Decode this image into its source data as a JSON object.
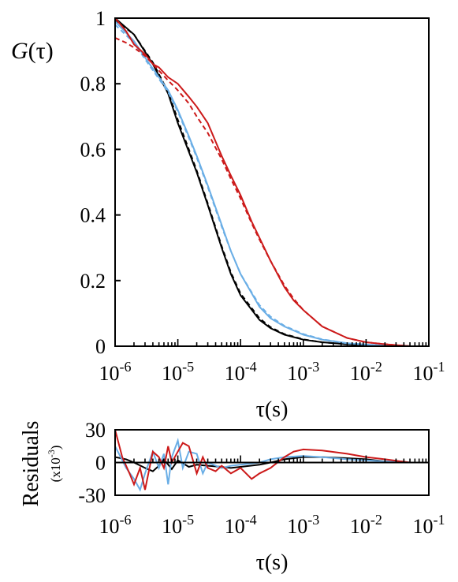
{
  "chart_data": [
    {
      "type": "line",
      "ylabel": "G(τ)",
      "ylabel_italic": "G",
      "ylabel_rest": "(τ)",
      "xlabel": "τ(s)",
      "xscale": "log",
      "xlim": [
        1e-06,
        0.1
      ],
      "ylim": [
        0,
        1
      ],
      "x_tick_labels": [
        {
          "base": "10",
          "exp": "-6"
        },
        {
          "base": "10",
          "exp": "-5"
        },
        {
          "base": "10",
          "exp": "-4"
        },
        {
          "base": "10",
          "exp": "-3"
        },
        {
          "base": "10",
          "exp": "-2"
        },
        {
          "base": "10",
          "exp": "-1"
        }
      ],
      "x_ticks": [
        1e-06,
        1e-05,
        0.0001,
        0.001,
        0.01,
        0.1
      ],
      "y_ticks": [
        0,
        0.2,
        0.4,
        0.6,
        0.8,
        1
      ],
      "y_tick_labels": [
        "0",
        "0.2",
        "0.4",
        "0.6",
        "0.8",
        "1"
      ],
      "grid": false,
      "series": [
        {
          "color": "#000000",
          "style": "solid",
          "x": [
            1e-06,
            2e-06,
            4e-06,
            7e-06,
            1e-05,
            2e-05,
            3e-05,
            5e-05,
            7e-05,
            0.0001,
            0.0002,
            0.0003,
            0.0005,
            0.001,
            0.002,
            0.005,
            0.01,
            0.02,
            0.05
          ],
          "y": [
            1.0,
            0.95,
            0.86,
            0.77,
            0.68,
            0.53,
            0.43,
            0.3,
            0.22,
            0.155,
            0.08,
            0.055,
            0.035,
            0.02,
            0.012,
            0.006,
            0.003,
            0.001,
            0.0
          ]
        },
        {
          "color": "#000000",
          "style": "dashed",
          "x": [
            1e-06,
            2e-06,
            4e-06,
            7e-06,
            1e-05,
            2e-05,
            3e-05,
            5e-05,
            7e-05,
            0.0001,
            0.0002,
            0.0003,
            0.0005,
            0.001,
            0.002,
            0.005,
            0.01,
            0.02,
            0.05
          ],
          "y": [
            0.995,
            0.95,
            0.865,
            0.775,
            0.69,
            0.535,
            0.435,
            0.305,
            0.225,
            0.16,
            0.085,
            0.058,
            0.037,
            0.021,
            0.012,
            0.006,
            0.003,
            0.001,
            0.0
          ]
        },
        {
          "color": "#6aaee6",
          "style": "solid",
          "x": [
            1e-06,
            2e-06,
            3e-06,
            5e-06,
            7e-06,
            1e-05,
            1.5e-05,
            2e-05,
            3e-05,
            5e-05,
            7e-05,
            0.0001,
            0.0002,
            0.0003,
            0.0005,
            0.001,
            0.002,
            0.005,
            0.01,
            0.02,
            0.05
          ],
          "y": [
            0.99,
            0.93,
            0.88,
            0.82,
            0.78,
            0.72,
            0.64,
            0.58,
            0.49,
            0.37,
            0.29,
            0.22,
            0.12,
            0.085,
            0.06,
            0.035,
            0.02,
            0.009,
            0.005,
            0.002,
            0.0
          ]
        },
        {
          "color": "#6aaee6",
          "style": "dashed",
          "x": [
            1e-06,
            2e-06,
            3e-06,
            5e-06,
            7e-06,
            1e-05,
            1.5e-05,
            2e-05,
            3e-05,
            5e-05,
            7e-05,
            0.0001,
            0.0002,
            0.0003,
            0.0005,
            0.001,
            0.002,
            0.005,
            0.01,
            0.02,
            0.05
          ],
          "y": [
            0.98,
            0.925,
            0.875,
            0.815,
            0.775,
            0.715,
            0.635,
            0.575,
            0.485,
            0.365,
            0.29,
            0.22,
            0.125,
            0.09,
            0.062,
            0.037,
            0.021,
            0.009,
            0.005,
            0.002,
            0.0
          ]
        },
        {
          "color": "#cc1a1a",
          "style": "solid",
          "x": [
            1e-06,
            1.5e-06,
            2e-06,
            3e-06,
            4e-06,
            5e-06,
            7e-06,
            1e-05,
            1.5e-05,
            2e-05,
            3e-05,
            5e-05,
            7e-05,
            0.0001,
            0.00015,
            0.0002,
            0.0003,
            0.0005,
            0.0007,
            0.001,
            0.002,
            0.005,
            0.01,
            0.02,
            0.05
          ],
          "y": [
            1.0,
            0.96,
            0.92,
            0.89,
            0.86,
            0.85,
            0.82,
            0.8,
            0.76,
            0.73,
            0.68,
            0.58,
            0.52,
            0.46,
            0.38,
            0.33,
            0.26,
            0.18,
            0.14,
            0.11,
            0.06,
            0.025,
            0.012,
            0.006,
            0.0
          ]
        },
        {
          "color": "#cc1a1a",
          "style": "dashed",
          "x": [
            1e-06,
            1.5e-06,
            2e-06,
            3e-06,
            4e-06,
            5e-06,
            7e-06,
            1e-05,
            1.5e-05,
            2e-05,
            3e-05,
            5e-05,
            7e-05,
            0.0001,
            0.00015,
            0.0002,
            0.0003,
            0.0005,
            0.0007,
            0.001,
            0.002,
            0.005,
            0.01,
            0.02,
            0.05
          ],
          "y": [
            0.94,
            0.925,
            0.91,
            0.885,
            0.86,
            0.84,
            0.81,
            0.78,
            0.74,
            0.7,
            0.65,
            0.57,
            0.51,
            0.45,
            0.375,
            0.325,
            0.26,
            0.185,
            0.145,
            0.11,
            0.06,
            0.025,
            0.012,
            0.006,
            0.0
          ]
        }
      ]
    },
    {
      "type": "line",
      "ylabel": "Residuals",
      "ylabel_unit_base": "(x10",
      "ylabel_unit_exp": "-3",
      "ylabel_unit_close": ")",
      "xlabel": "τ(s)",
      "xscale": "log",
      "xlim": [
        1e-06,
        0.1
      ],
      "ylim": [
        -30,
        30
      ],
      "y_ticks": [
        -30,
        0,
        30
      ],
      "y_tick_labels": [
        "-30",
        "0",
        "30"
      ],
      "x_ticks": [
        1e-06,
        1e-05,
        0.0001,
        0.001,
        0.01,
        0.1
      ],
      "x_tick_labels": [
        {
          "base": "10",
          "exp": "-6"
        },
        {
          "base": "10",
          "exp": "-5"
        },
        {
          "base": "10",
          "exp": "-4"
        },
        {
          "base": "10",
          "exp": "-3"
        },
        {
          "base": "10",
          "exp": "-2"
        },
        {
          "base": "10",
          "exp": "-1"
        }
      ],
      "grid": false,
      "series": [
        {
          "color": "#000000",
          "style": "solid",
          "x": [
            7e-07,
            1e-06,
            1.5e-06,
            2e-06,
            3e-06,
            4e-06,
            5e-06,
            6e-06,
            8e-06,
            1e-05,
            1.5e-05,
            2e-05,
            3e-05,
            5e-05,
            7e-05,
            0.0001,
            0.0002,
            0.0003,
            0.0005,
            0.001,
            0.002,
            0.005,
            0.01,
            0.02,
            0.05
          ],
          "y": [
            10,
            5,
            3,
            0,
            -5,
            -8,
            -3,
            3,
            -6,
            2,
            -4,
            -2,
            -3,
            -4,
            -5,
            -4,
            -2,
            0,
            3,
            5,
            5,
            4,
            3,
            1,
            0
          ]
        },
        {
          "color": "#6aaee6",
          "style": "solid",
          "x": [
            7e-07,
            1e-06,
            1.5e-06,
            2e-06,
            2.5e-06,
            3e-06,
            4e-06,
            5e-06,
            6e-06,
            7e-06,
            8e-06,
            1e-05,
            1.2e-05,
            1.5e-05,
            2e-05,
            2.5e-05,
            3e-05,
            5e-05,
            7e-05,
            0.0001,
            0.0002,
            0.0003,
            0.0005,
            0.001,
            0.002,
            0.005,
            0.01,
            0.02,
            0.05
          ],
          "y": [
            25,
            15,
            -5,
            -15,
            -25,
            -10,
            10,
            -5,
            8,
            -20,
            5,
            20,
            -5,
            10,
            8,
            -10,
            0,
            -5,
            -3,
            -2,
            0,
            3,
            5,
            6,
            5,
            3,
            2,
            1,
            0
          ]
        },
        {
          "color": "#cc1a1a",
          "style": "solid",
          "x": [
            1e-06,
            1.3e-06,
            1.7e-06,
            2e-06,
            2.5e-06,
            3e-06,
            4e-06,
            5e-06,
            6e-06,
            7e-06,
            8e-06,
            1e-05,
            1.2e-05,
            1.5e-05,
            2e-05,
            2.5e-05,
            3e-05,
            4e-05,
            5e-05,
            7e-05,
            0.0001,
            0.00015,
            0.0002,
            0.0003,
            0.0005,
            0.0007,
            0.001,
            0.002,
            0.005,
            0.01,
            0.02,
            0.05
          ],
          "y": [
            30,
            5,
            -10,
            -20,
            -5,
            -25,
            10,
            5,
            -5,
            15,
            0,
            10,
            18,
            15,
            -10,
            5,
            -5,
            -8,
            -3,
            -10,
            -5,
            -15,
            -10,
            -5,
            5,
            10,
            12,
            11,
            8,
            5,
            3,
            0
          ]
        }
      ]
    }
  ]
}
